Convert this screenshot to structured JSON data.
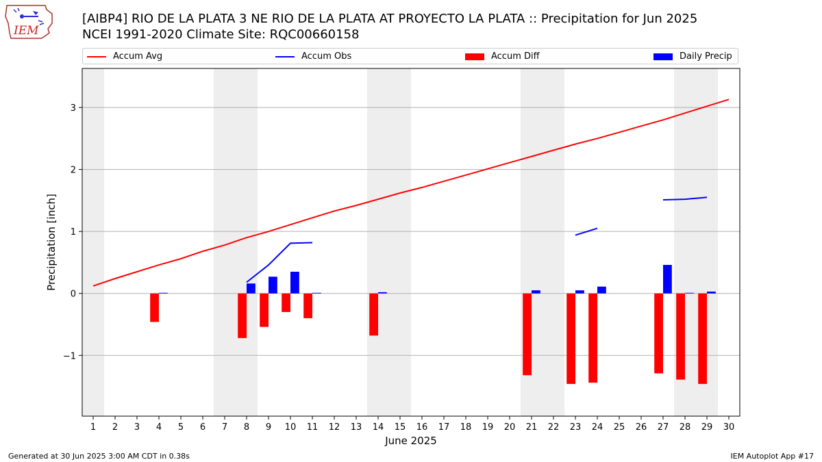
{
  "title_line1": "[AIBP4] RIO DE LA PLATA 3 NE RIO DE LA PLATA AT PROYECTO LA PLATA :: Precipitation for Jun 2025",
  "title_line2": "NCEI 1991-2020 Climate Site: RQC00660158",
  "logo_text": "IEM",
  "footer_left": "Generated at 30 Jun 2025 3:00 AM CDT in 0.38s",
  "footer_right": "IEM Autoplot App #17",
  "legend": [
    {
      "label": "Accum Avg",
      "kind": "line",
      "color": "#ff0000"
    },
    {
      "label": "Accum Obs",
      "kind": "line",
      "color": "#0000ff"
    },
    {
      "label": "Accum Diff",
      "kind": "box",
      "color": "#ff0000"
    },
    {
      "label": "Daily Precip",
      "kind": "box",
      "color": "#0000ff"
    }
  ],
  "chart_data": {
    "type": "bar",
    "xlabel": "June 2025",
    "ylabel": "Precipitation [inch]",
    "xlim": [
      0.5,
      30.5
    ],
    "ylim": [
      -1.98,
      3.63
    ],
    "yticks": [
      -1,
      0,
      1,
      2,
      3
    ],
    "ytick_labels": [
      "−1",
      "0",
      "1",
      "2",
      "3"
    ],
    "days": [
      1,
      2,
      3,
      4,
      5,
      6,
      7,
      8,
      9,
      10,
      11,
      12,
      13,
      14,
      15,
      16,
      17,
      18,
      19,
      20,
      21,
      22,
      23,
      24,
      25,
      26,
      27,
      28,
      29,
      30
    ],
    "weekend_days": [
      1,
      7,
      8,
      14,
      15,
      21,
      22,
      28,
      29
    ],
    "grid": "horizontal",
    "legend_placement": "top",
    "series": [
      {
        "name": "Accum Avg",
        "kind": "line",
        "color": "#ff0000",
        "points": [
          [
            1,
            0.12
          ],
          [
            2,
            0.24
          ],
          [
            3,
            0.35
          ],
          [
            4,
            0.46
          ],
          [
            5,
            0.56
          ],
          [
            6,
            0.68
          ],
          [
            7,
            0.78
          ],
          [
            8,
            0.9
          ],
          [
            9,
            1.0
          ],
          [
            10,
            1.11
          ],
          [
            11,
            1.22
          ],
          [
            12,
            1.33
          ],
          [
            13,
            1.42
          ],
          [
            14,
            1.52
          ],
          [
            15,
            1.62
          ],
          [
            16,
            1.71
          ],
          [
            17,
            1.81
          ],
          [
            18,
            1.91
          ],
          [
            19,
            2.01
          ],
          [
            20,
            2.11
          ],
          [
            21,
            2.21
          ],
          [
            22,
            2.31
          ],
          [
            23,
            2.41
          ],
          [
            24,
            2.5
          ],
          [
            25,
            2.6
          ],
          [
            26,
            2.7
          ],
          [
            27,
            2.8
          ],
          [
            28,
            2.91
          ],
          [
            29,
            3.02
          ],
          [
            30,
            3.13
          ]
        ]
      },
      {
        "name": "Accum Obs",
        "kind": "line",
        "color": "#0000ff",
        "segments": [
          [
            [
              8,
              0.18
            ],
            [
              9,
              0.46
            ],
            [
              10,
              0.81
            ],
            [
              11,
              0.82
            ]
          ],
          [
            [
              23,
              0.94
            ],
            [
              24,
              1.05
            ]
          ],
          [
            [
              27,
              1.51
            ],
            [
              28,
              1.52
            ],
            [
              29,
              1.55
            ]
          ]
        ]
      },
      {
        "name": "Accum Diff",
        "kind": "bar",
        "color": "#ff0000",
        "offset": -0.2,
        "points": [
          [
            4,
            -0.46
          ],
          [
            8,
            -0.72
          ],
          [
            9,
            -0.54
          ],
          [
            10,
            -0.3
          ],
          [
            11,
            -0.4
          ],
          [
            14,
            -0.68
          ],
          [
            21,
            -1.32
          ],
          [
            23,
            -1.46
          ],
          [
            24,
            -1.44
          ],
          [
            27,
            -1.29
          ],
          [
            28,
            -1.39
          ],
          [
            29,
            -1.46
          ]
        ]
      },
      {
        "name": "Daily Precip",
        "kind": "bar",
        "color": "#0000ff",
        "offset": 0.2,
        "points": [
          [
            4,
            0.01
          ],
          [
            8,
            0.16
          ],
          [
            9,
            0.27
          ],
          [
            10,
            0.35
          ],
          [
            11,
            0.01
          ],
          [
            14,
            0.02
          ],
          [
            21,
            0.05
          ],
          [
            23,
            0.05
          ],
          [
            24,
            0.11
          ],
          [
            27,
            0.46
          ],
          [
            28,
            0.01
          ],
          [
            29,
            0.03
          ]
        ]
      }
    ]
  }
}
